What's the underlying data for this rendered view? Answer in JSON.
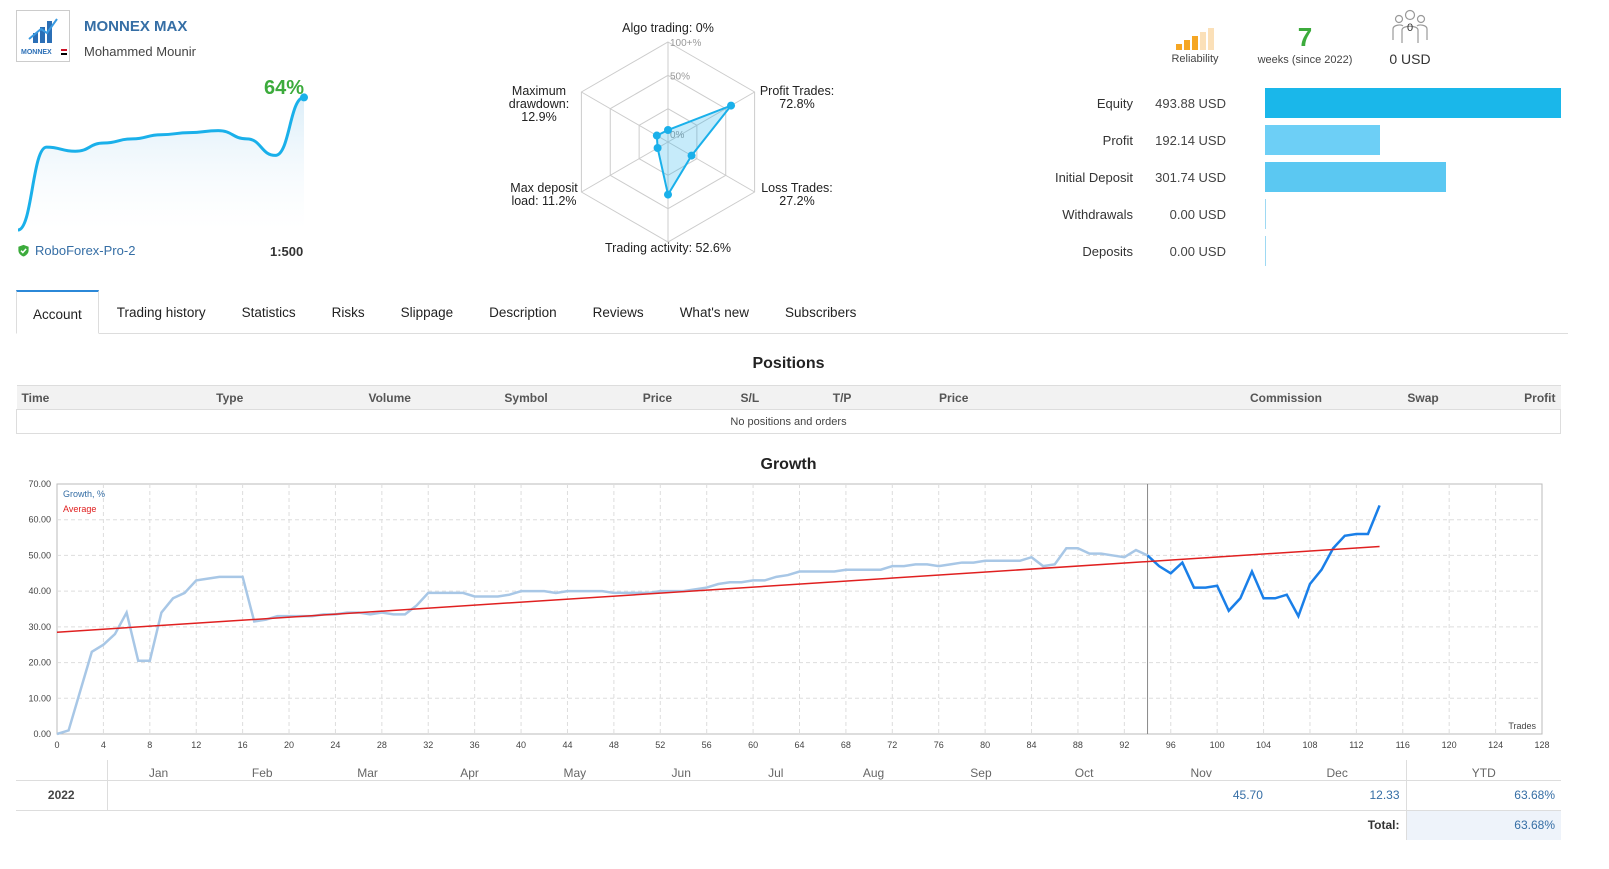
{
  "header": {
    "signal_name": "MONNEX MAX",
    "author": "Mohammed Mounir",
    "logo_text": "MONNEX",
    "growth": "64%",
    "broker": "RoboForex-Pro-2",
    "leverage": "1:500"
  },
  "mini_chart": {
    "values": [
      0,
      40,
      38,
      42,
      44,
      46,
      47,
      48,
      44,
      36,
      64
    ]
  },
  "radar": {
    "scale_labels": [
      "100+%",
      "50%",
      "0%"
    ],
    "axes": [
      {
        "label_lines": [
          "Algo trading: 0%"
        ],
        "value": 0
      },
      {
        "label_lines": [
          "Profit Trades:",
          "72.8%"
        ],
        "value": 72.8
      },
      {
        "label_lines": [
          "Loss Trades:",
          "27.2%"
        ],
        "value": 27.2
      },
      {
        "label_lines": [
          "Trading activity: 52.6%"
        ],
        "value": 52.6
      },
      {
        "label_lines": [
          "Max deposit",
          "load: 11.2%"
        ],
        "value": 11.2
      },
      {
        "label_lines": [
          "Maximum",
          "drawdown:",
          "12.9%"
        ],
        "value": 12.9
      }
    ]
  },
  "reliability": {
    "label": "Reliability",
    "level": 3,
    "max": 5
  },
  "weeks": {
    "value": "7",
    "label": "weeks (since 2022)"
  },
  "subscribers": {
    "count": "0",
    "funds": "0 USD"
  },
  "financials": [
    {
      "label": "Equity",
      "value": "493.88 USD",
      "amount": 493.88,
      "color": "#1ab7ea"
    },
    {
      "label": "Profit",
      "value": "192.14 USD",
      "amount": 192.14,
      "color": "#6dcff6"
    },
    {
      "label": "Initial Deposit",
      "value": "301.74 USD",
      "amount": 301.74,
      "color": "#5bc8f2"
    },
    {
      "label": "Withdrawals",
      "value": "0.00 USD",
      "amount": 0,
      "color": "#6dcff6"
    },
    {
      "label": "Deposits",
      "value": "0.00 USD",
      "amount": 0,
      "color": "#6dcff6"
    }
  ],
  "tabs": [
    "Account",
    "Trading history",
    "Statistics",
    "Risks",
    "Slippage",
    "Description",
    "Reviews",
    "What's new",
    "Subscribers"
  ],
  "positions": {
    "title": "Positions",
    "columns": [
      "Time",
      "Type",
      "Volume",
      "Symbol",
      "Price",
      "S/L",
      "T/P",
      "Price",
      "Commission",
      "Swap",
      "Profit"
    ],
    "empty_text": "No positions and orders"
  },
  "growth": {
    "title": "Growth",
    "legend_growth": "Growth, %",
    "legend_average": "Average",
    "x_label": "Trades",
    "months": [
      "Jan",
      "Feb",
      "Mar",
      "Apr",
      "May",
      "Jun",
      "Jul",
      "Aug",
      "Sep",
      "Oct",
      "Nov",
      "Dec"
    ],
    "year": "2022",
    "month_values": {
      "Nov": "45.70",
      "Dec": "12.33"
    },
    "ytd_label": "YTD",
    "ytd_value": "63.68%",
    "total_label": "Total:",
    "total_value": "63.68%"
  },
  "chart_data": {
    "type": "line",
    "title": "Growth",
    "xlabel": "Trades",
    "ylabel": "",
    "xlim": [
      0,
      128
    ],
    "ylim": [
      0,
      70
    ],
    "x_ticks": [
      0,
      4,
      8,
      12,
      16,
      20,
      24,
      28,
      32,
      36,
      40,
      44,
      48,
      52,
      56,
      60,
      64,
      68,
      72,
      76,
      80,
      84,
      88,
      92,
      96,
      100,
      104,
      108,
      112,
      116,
      120,
      124,
      128
    ],
    "y_ticks": [
      0,
      10,
      20,
      30,
      40,
      50,
      60,
      70
    ],
    "divider_x": 94,
    "series": [
      {
        "name": "Growth, %",
        "color_history": "#a8c7e6",
        "color_current": "#1a7fe8",
        "x": [
          0,
          1,
          2,
          3,
          4,
          5,
          6,
          7,
          8,
          9,
          10,
          11,
          12,
          13,
          14,
          15,
          16,
          17,
          18,
          19,
          20,
          21,
          22,
          23,
          24,
          25,
          26,
          27,
          28,
          29,
          30,
          31,
          32,
          33,
          34,
          35,
          36,
          37,
          38,
          39,
          40,
          41,
          42,
          43,
          44,
          45,
          46,
          47,
          48,
          49,
          50,
          51,
          52,
          53,
          54,
          55,
          56,
          57,
          58,
          59,
          60,
          61,
          62,
          63,
          64,
          65,
          66,
          67,
          68,
          69,
          70,
          71,
          72,
          73,
          74,
          75,
          76,
          77,
          78,
          79,
          80,
          81,
          82,
          83,
          84,
          85,
          86,
          87,
          88,
          89,
          90,
          91,
          92,
          93,
          94,
          95,
          96,
          97,
          98,
          99,
          100,
          101,
          102,
          103,
          104,
          105,
          106,
          107,
          108,
          109,
          110,
          111,
          112,
          113,
          114
        ],
        "values": [
          0,
          1,
          12,
          23,
          25,
          28,
          34,
          20.5,
          20.5,
          34,
          38,
          39.5,
          43,
          43.5,
          44,
          44,
          44,
          31.5,
          32,
          33,
          33,
          33,
          33,
          33.5,
          33.5,
          34,
          34,
          33.5,
          34,
          33.5,
          33.5,
          36,
          39.5,
          39.5,
          39.5,
          39.5,
          38.5,
          38.5,
          38.5,
          39,
          40,
          40,
          40,
          39.5,
          40,
          40,
          40,
          40,
          39.5,
          39.5,
          39.5,
          39.5,
          40,
          40,
          40,
          40.5,
          41,
          42,
          42.5,
          42.5,
          43,
          43,
          44,
          44.5,
          45.5,
          45.5,
          45.5,
          45.5,
          46,
          46,
          46,
          46,
          47,
          47,
          47.5,
          47.5,
          47,
          47.5,
          48,
          48,
          48.5,
          48.5,
          48.5,
          48.5,
          49.5,
          47,
          47.5,
          52,
          52,
          50.5,
          50.5,
          50,
          49.5,
          51.5,
          50,
          47,
          45,
          48,
          41,
          41,
          41.5,
          34.5,
          38,
          45.5,
          38,
          38,
          39,
          33,
          42,
          46,
          52,
          55.5,
          56,
          56,
          64
        ]
      },
      {
        "name": "Average",
        "color": "#e02020",
        "x": [
          0,
          114
        ],
        "values": [
          28.5,
          52.5
        ]
      }
    ]
  }
}
